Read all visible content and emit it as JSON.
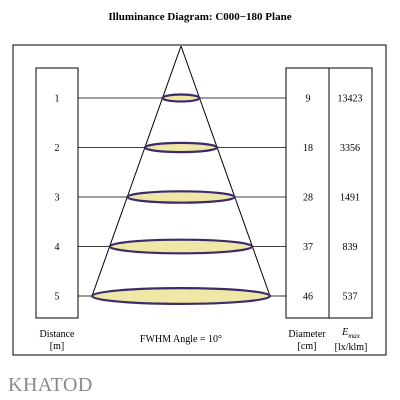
{
  "title": "Illuminance Diagram: C000−180 Plane",
  "fwhm_label": "FWHM Angle = 10°",
  "left_column": {
    "header": "Distance",
    "unit": "[m]"
  },
  "diameter_column": {
    "header": "Diameter",
    "unit": "[cm]"
  },
  "emax_column": {
    "header_main": "E",
    "header_sub": "max",
    "unit": "[lx/klm]"
  },
  "rows": [
    {
      "distance": "1",
      "diameter": "9",
      "emax": "13423"
    },
    {
      "distance": "2",
      "diameter": "18",
      "emax": "3356"
    },
    {
      "distance": "3",
      "diameter": "28",
      "emax": "1491"
    },
    {
      "distance": "4",
      "diameter": "37",
      "emax": "839"
    },
    {
      "distance": "5",
      "diameter": "46",
      "emax": "537"
    }
  ],
  "brand": "KHATOD",
  "colors": {
    "ellipse_fill": "#efe7a6",
    "ellipse_stroke": "#3d2a6b",
    "brand": "#8a8a8a"
  }
}
